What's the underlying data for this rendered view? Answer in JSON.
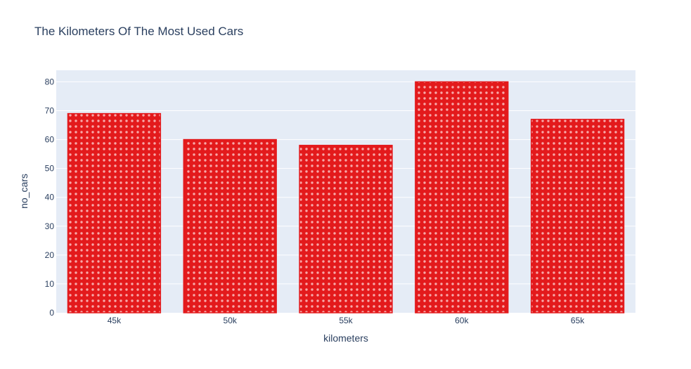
{
  "chart_data": {
    "type": "bar",
    "title": "The Kilometers Of The Most Used Cars",
    "xlabel": "kilometers",
    "ylabel": "no_cars",
    "categories": [
      "45k",
      "50k",
      "55k",
      "60k",
      "65k"
    ],
    "values": [
      69,
      60,
      58,
      80,
      67
    ],
    "ylim": [
      0,
      84
    ],
    "yticks": [
      0,
      10,
      20,
      30,
      40,
      50,
      60,
      70,
      80
    ],
    "grid": true,
    "bar_color": "#e31a1c",
    "pattern": "dots",
    "pattern_color": "#f7a8a8",
    "plot_bg": "#e5ecf6",
    "text_color": "#2a3f5f"
  }
}
